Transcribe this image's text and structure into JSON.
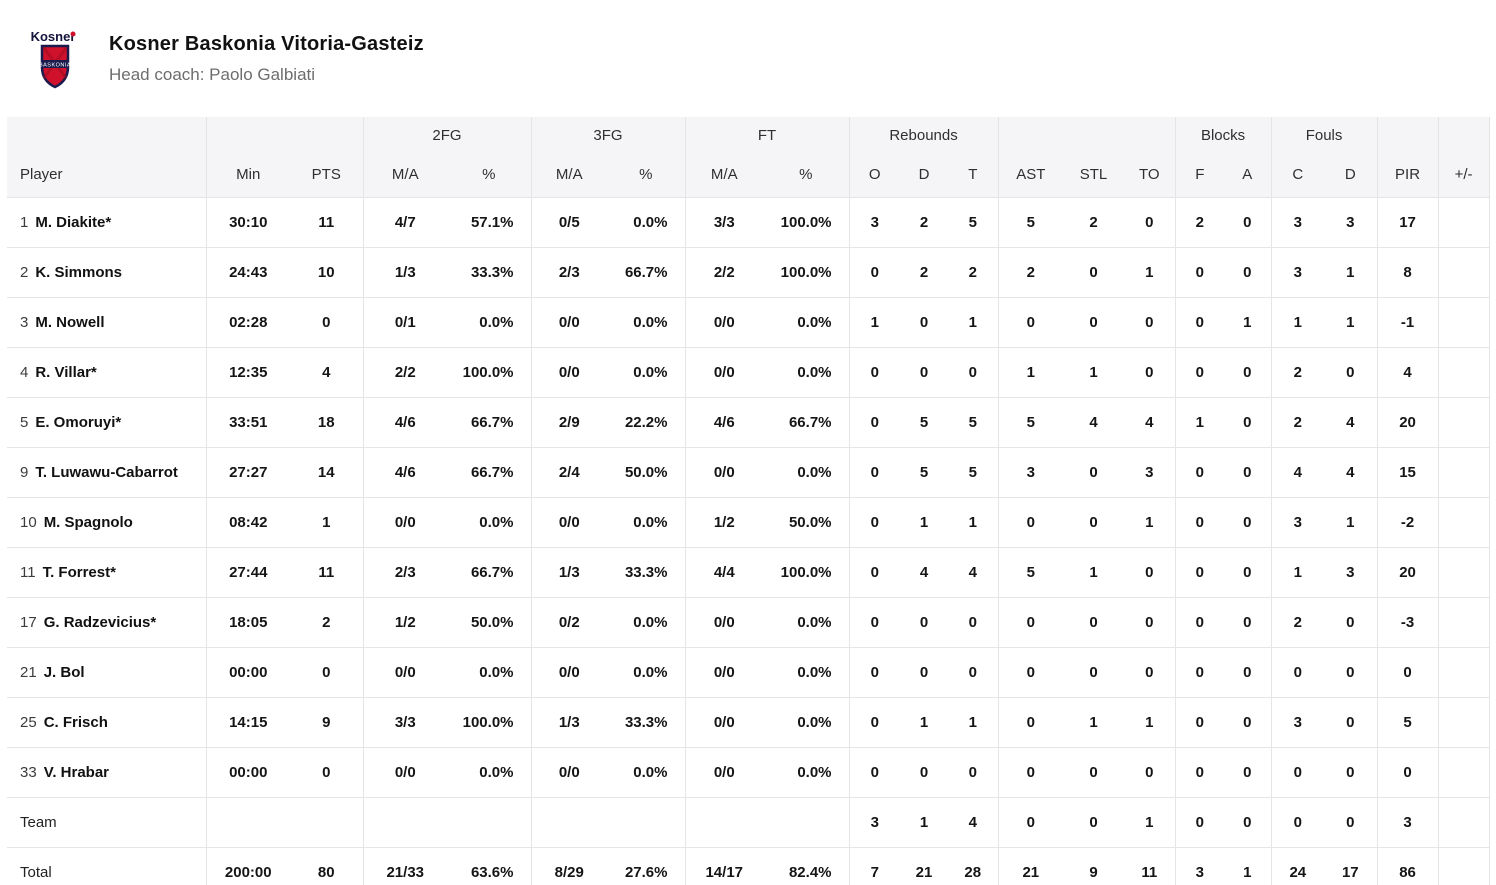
{
  "header": {
    "team_name": "Kosner Baskonia Vitoria-Gasteiz",
    "coach": "Head coach: Paolo Galbiati",
    "logo": {
      "wordmark": "Kosner",
      "shield_text": "BASKONIA"
    }
  },
  "colors": {
    "accent_red": "#d0112b",
    "navy": "#1b1b4d",
    "header_bg": "#f5f5f7",
    "border": "#e5e5e6"
  },
  "table": {
    "groups": {
      "fg2": "2FG",
      "fg3": "3FG",
      "ft": "FT",
      "rebounds": "Rebounds",
      "blocks": "Blocks",
      "fouls": "Fouls"
    },
    "columns": [
      "Player",
      "Min",
      "PTS",
      "M/A",
      "%",
      "M/A",
      "%",
      "M/A",
      "%",
      "O",
      "D",
      "T",
      "AST",
      "STL",
      "TO",
      "F",
      "A",
      "C",
      "D",
      "PIR",
      "+/-"
    ],
    "rows": [
      {
        "type": "player",
        "num": "1",
        "name": "M. Diakite*",
        "stats": [
          "30:10",
          "11",
          "4/7",
          "57.1%",
          "0/5",
          "0.0%",
          "3/3",
          "100.0%",
          "3",
          "2",
          "5",
          "5",
          "2",
          "0",
          "2",
          "0",
          "3",
          "3",
          "17",
          ""
        ]
      },
      {
        "type": "player",
        "num": "2",
        "name": "K. Simmons",
        "stats": [
          "24:43",
          "10",
          "1/3",
          "33.3%",
          "2/3",
          "66.7%",
          "2/2",
          "100.0%",
          "0",
          "2",
          "2",
          "2",
          "0",
          "1",
          "0",
          "0",
          "3",
          "1",
          "8",
          ""
        ]
      },
      {
        "type": "player",
        "num": "3",
        "name": "M. Nowell",
        "stats": [
          "02:28",
          "0",
          "0/1",
          "0.0%",
          "0/0",
          "0.0%",
          "0/0",
          "0.0%",
          "1",
          "0",
          "1",
          "0",
          "0",
          "0",
          "0",
          "1",
          "1",
          "1",
          "-1",
          ""
        ]
      },
      {
        "type": "player",
        "num": "4",
        "name": "R. Villar*",
        "stats": [
          "12:35",
          "4",
          "2/2",
          "100.0%",
          "0/0",
          "0.0%",
          "0/0",
          "0.0%",
          "0",
          "0",
          "0",
          "1",
          "1",
          "0",
          "0",
          "0",
          "2",
          "0",
          "4",
          ""
        ]
      },
      {
        "type": "player",
        "num": "5",
        "name": "E. Omoruyi*",
        "stats": [
          "33:51",
          "18",
          "4/6",
          "66.7%",
          "2/9",
          "22.2%",
          "4/6",
          "66.7%",
          "0",
          "5",
          "5",
          "5",
          "4",
          "4",
          "1",
          "0",
          "2",
          "4",
          "20",
          ""
        ]
      },
      {
        "type": "player",
        "num": "9",
        "name": "T. Luwawu-Cabarrot",
        "stats": [
          "27:27",
          "14",
          "4/6",
          "66.7%",
          "2/4",
          "50.0%",
          "0/0",
          "0.0%",
          "0",
          "5",
          "5",
          "3",
          "0",
          "3",
          "0",
          "0",
          "4",
          "4",
          "15",
          ""
        ]
      },
      {
        "type": "player",
        "num": "10",
        "name": "M. Spagnolo",
        "stats": [
          "08:42",
          "1",
          "0/0",
          "0.0%",
          "0/0",
          "0.0%",
          "1/2",
          "50.0%",
          "0",
          "1",
          "1",
          "0",
          "0",
          "1",
          "0",
          "0",
          "3",
          "1",
          "-2",
          ""
        ]
      },
      {
        "type": "player",
        "num": "11",
        "name": "T. Forrest*",
        "stats": [
          "27:44",
          "11",
          "2/3",
          "66.7%",
          "1/3",
          "33.3%",
          "4/4",
          "100.0%",
          "0",
          "4",
          "4",
          "5",
          "1",
          "0",
          "0",
          "0",
          "1",
          "3",
          "20",
          ""
        ]
      },
      {
        "type": "player",
        "num": "17",
        "name": "G. Radzevicius*",
        "stats": [
          "18:05",
          "2",
          "1/2",
          "50.0%",
          "0/2",
          "0.0%",
          "0/0",
          "0.0%",
          "0",
          "0",
          "0",
          "0",
          "0",
          "0",
          "0",
          "0",
          "2",
          "0",
          "-3",
          ""
        ]
      },
      {
        "type": "player",
        "num": "21",
        "name": "J. Bol",
        "stats": [
          "00:00",
          "0",
          "0/0",
          "0.0%",
          "0/0",
          "0.0%",
          "0/0",
          "0.0%",
          "0",
          "0",
          "0",
          "0",
          "0",
          "0",
          "0",
          "0",
          "0",
          "0",
          "0",
          ""
        ]
      },
      {
        "type": "player",
        "num": "25",
        "name": "C. Frisch",
        "stats": [
          "14:15",
          "9",
          "3/3",
          "100.0%",
          "1/3",
          "33.3%",
          "0/0",
          "0.0%",
          "0",
          "1",
          "1",
          "0",
          "1",
          "1",
          "0",
          "0",
          "3",
          "0",
          "5",
          ""
        ]
      },
      {
        "type": "player",
        "num": "33",
        "name": "V. Hrabar",
        "stats": [
          "00:00",
          "0",
          "0/0",
          "0.0%",
          "0/0",
          "0.0%",
          "0/0",
          "0.0%",
          "0",
          "0",
          "0",
          "0",
          "0",
          "0",
          "0",
          "0",
          "0",
          "0",
          "0",
          ""
        ]
      },
      {
        "type": "summary",
        "num": "",
        "name": "Team",
        "stats": [
          "",
          "",
          "",
          "",
          "",
          "",
          "",
          "",
          "3",
          "1",
          "4",
          "0",
          "0",
          "1",
          "0",
          "0",
          "0",
          "0",
          "3",
          ""
        ]
      },
      {
        "type": "summary",
        "num": "",
        "name": "Total",
        "stats": [
          "200:00",
          "80",
          "21/33",
          "63.6%",
          "8/29",
          "27.6%",
          "14/17",
          "82.4%",
          "7",
          "21",
          "28",
          "21",
          "9",
          "11",
          "3",
          "1",
          "24",
          "17",
          "86",
          ""
        ]
      }
    ]
  }
}
